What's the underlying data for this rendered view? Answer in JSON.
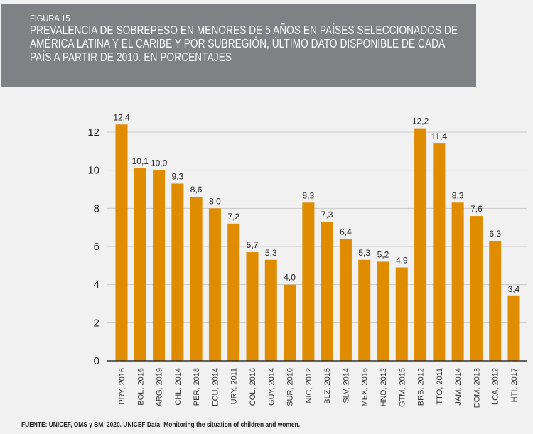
{
  "figure_label": "FIGURA 15",
  "title": "PREVALENCIA DE SOBREPESO EN MENORES DE 5 AÑOS EN PAÍSES SELECCIONADOS DE AMÉRICA LATINA Y EL CARIBE Y POR SUBREGIÓN, ÚLTIMO DATO DISPONIBLE DE CADA PAÍS A PARTIR DE 2010. EN PORCENTAJES",
  "source": "FUENTE: UNICEF, OMS y BM, 2020. UNICEF Data: Monitoring the situation of children and women.",
  "chart_data": {
    "type": "bar",
    "categories": [
      "PRY, 2016",
      "BOL, 2016",
      "ARG, 2019",
      "CHL, 2014",
      "PER, 2018",
      "ECU, 2014",
      "URY, 2011",
      "COL, 2016",
      "GUY, 2014",
      "SUR, 2010",
      "NIC, 2012",
      "BLZ, 2015",
      "SLV, 2014",
      "MEX, 2016",
      "HND, 2012",
      "GTM, 2015",
      "BRB, 2012",
      "TTO, 2011",
      "JAM, 2014",
      "DOM, 2013",
      "LCA, 2012",
      "HTI, 2017"
    ],
    "values": [
      12.4,
      10.1,
      10.0,
      9.3,
      8.6,
      8.0,
      7.2,
      5.7,
      5.3,
      4.0,
      8.3,
      7.3,
      6.4,
      5.3,
      5.2,
      4.9,
      12.2,
      11.4,
      8.3,
      7.6,
      6.3,
      3.4
    ],
    "data_labels": [
      "12,4",
      "10,1",
      "10,0",
      "9,3",
      "8,6",
      "8,0",
      "7,2",
      "5,7",
      "5,3",
      "4,0",
      "8,3",
      "7,3",
      "6,4",
      "5,3",
      "5,2",
      "4,9",
      "12,2",
      "11,4",
      "8,3",
      "7,6",
      "6,3",
      "3,4"
    ],
    "yticks": [
      0,
      2,
      4,
      6,
      8,
      10,
      12
    ],
    "ylim": [
      0,
      12.4
    ],
    "grid": true,
    "bar_color": "#e08c00",
    "xlabel": "",
    "ylabel": ""
  }
}
